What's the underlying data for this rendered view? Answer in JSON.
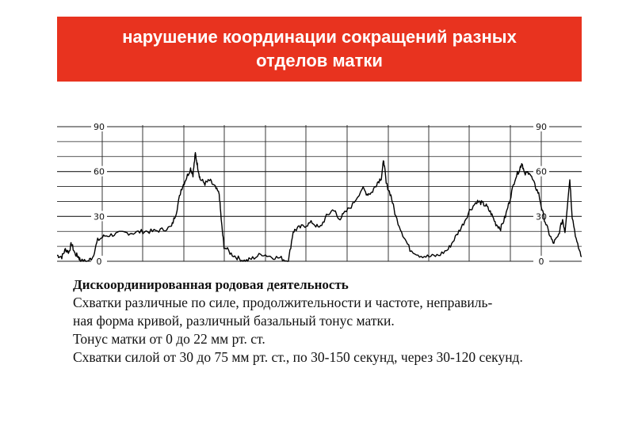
{
  "header": {
    "title_line1": "нарушение координации сокращений разных",
    "title_line2": "отделов матки",
    "background": "#e8331f"
  },
  "chart_data": {
    "type": "line",
    "title": "",
    "xlabel": "",
    "ylabel": "",
    "ylim": [
      0,
      90
    ],
    "yticks_left": [
      "90",
      "60",
      "30",
      "0"
    ],
    "yticks_right": [
      "90",
      "60",
      "30",
      "0"
    ],
    "grid": true,
    "x_range": [
      0,
      22
    ],
    "series": [
      {
        "values": [
          [
            0.0,
            4
          ],
          [
            0.2,
            3
          ],
          [
            0.35,
            8
          ],
          [
            0.5,
            6
          ],
          [
            0.6,
            12
          ],
          [
            0.75,
            5
          ],
          [
            0.9,
            3
          ],
          [
            1.0,
            0
          ],
          [
            1.3,
            0
          ],
          [
            1.5,
            3
          ],
          [
            1.7,
            14
          ],
          [
            2.0,
            17
          ],
          [
            2.4,
            18
          ],
          [
            2.8,
            19
          ],
          [
            3.2,
            19
          ],
          [
            3.6,
            20
          ],
          [
            4.0,
            20
          ],
          [
            4.4,
            21
          ],
          [
            4.8,
            23
          ],
          [
            5.0,
            33
          ],
          [
            5.2,
            48
          ],
          [
            5.4,
            55
          ],
          [
            5.6,
            62
          ],
          [
            5.7,
            58
          ],
          [
            5.8,
            72
          ],
          [
            5.9,
            63
          ],
          [
            6.0,
            55
          ],
          [
            6.2,
            52
          ],
          [
            6.4,
            54
          ],
          [
            6.6,
            50
          ],
          [
            6.8,
            45
          ],
          [
            6.9,
            25
          ],
          [
            7.0,
            10
          ],
          [
            7.3,
            5
          ],
          [
            7.6,
            2
          ],
          [
            7.9,
            0
          ],
          [
            8.2,
            2
          ],
          [
            8.6,
            5
          ],
          [
            9.0,
            3
          ],
          [
            9.4,
            2
          ],
          [
            9.7,
            0
          ],
          [
            9.9,
            20
          ],
          [
            10.1,
            22
          ],
          [
            10.4,
            24
          ],
          [
            10.7,
            26
          ],
          [
            11.0,
            22
          ],
          [
            11.3,
            30
          ],
          [
            11.6,
            35
          ],
          [
            11.8,
            28
          ],
          [
            12.0,
            31
          ],
          [
            12.4,
            38
          ],
          [
            12.8,
            49
          ],
          [
            13.0,
            45
          ],
          [
            13.2,
            46
          ],
          [
            13.4,
            52
          ],
          [
            13.6,
            56
          ],
          [
            13.7,
            68
          ],
          [
            13.8,
            52
          ],
          [
            14.0,
            44
          ],
          [
            14.2,
            30
          ],
          [
            14.5,
            18
          ],
          [
            14.8,
            8
          ],
          [
            15.2,
            4
          ],
          [
            15.6,
            3
          ],
          [
            16.0,
            4
          ],
          [
            16.4,
            8
          ],
          [
            16.7,
            16
          ],
          [
            17.0,
            24
          ],
          [
            17.3,
            34
          ],
          [
            17.6,
            40
          ],
          [
            17.8,
            39
          ],
          [
            18.0,
            37
          ],
          [
            18.2,
            32
          ],
          [
            18.4,
            25
          ],
          [
            18.6,
            22
          ],
          [
            18.8,
            30
          ],
          [
            19.0,
            42
          ],
          [
            19.2,
            55
          ],
          [
            19.4,
            62
          ],
          [
            19.5,
            66
          ],
          [
            19.6,
            58
          ],
          [
            19.8,
            60
          ],
          [
            20.0,
            52
          ],
          [
            20.2,
            45
          ],
          [
            20.4,
            30
          ],
          [
            20.6,
            20
          ],
          [
            20.8,
            12
          ],
          [
            21.0,
            16
          ],
          [
            21.2,
            28
          ],
          [
            21.3,
            20
          ],
          [
            21.5,
            55
          ],
          [
            21.6,
            30
          ],
          [
            21.8,
            12
          ],
          [
            22.0,
            3
          ]
        ]
      }
    ]
  },
  "caption": {
    "heading": "Дискоординированная родовая деятельность",
    "line1": "Схватки различные по силе, продолжительности и частоте, неправиль-",
    "line2": "ная форма кривой, различный базальный тонус матки.",
    "line3": "Тонус матки от 0 до 22 мм рт. ст.",
    "line4": "Схватки силой от 30 до 75 мм рт. ст., по 30-150 секунд, через 30-120 секунд."
  }
}
